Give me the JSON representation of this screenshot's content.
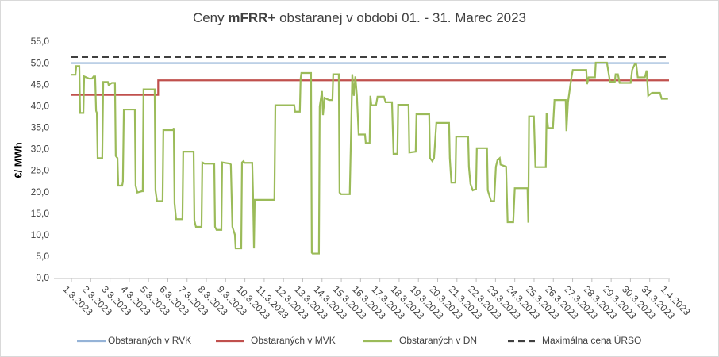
{
  "chart_data": {
    "type": "line",
    "title": [
      "Ceny",
      "mFRR+",
      "obstaranej v období 01. - 31. Marec 2023"
    ],
    "y_label": "€/ MWh",
    "xlim": [
      0,
      31
    ],
    "xticks": [
      {
        "value": 0,
        "label": "1.3.2023"
      },
      {
        "value": 1,
        "label": "2.3.2023"
      },
      {
        "value": 2,
        "label": "3.3.2023"
      },
      {
        "value": 3,
        "label": "4.3.2023"
      },
      {
        "value": 4,
        "label": "5.3.2023"
      },
      {
        "value": 5,
        "label": "6.3.2023"
      },
      {
        "value": 6,
        "label": "7.3.2023"
      },
      {
        "value": 7,
        "label": "8.3.2023"
      },
      {
        "value": 8,
        "label": "9.3.2023"
      },
      {
        "value": 9,
        "label": "10.3.2023"
      },
      {
        "value": 10,
        "label": "11.3.2023"
      },
      {
        "value": 11,
        "label": "12.3.2023"
      },
      {
        "value": 12,
        "label": "13.3.2023"
      },
      {
        "value": 13,
        "label": "14.3.2023"
      },
      {
        "value": 14,
        "label": "15.3.2023"
      },
      {
        "value": 15,
        "label": "16.3.2023"
      },
      {
        "value": 16,
        "label": "17.3.2023"
      },
      {
        "value": 17,
        "label": "18.3.2023"
      },
      {
        "value": 18,
        "label": "19.3.2023"
      },
      {
        "value": 19,
        "label": "20.3.2023"
      },
      {
        "value": 20,
        "label": "21.3.2023"
      },
      {
        "value": 21,
        "label": "22.3.2023"
      },
      {
        "value": 22,
        "label": "23.3.2023"
      },
      {
        "value": 23,
        "label": "24.3.2023"
      },
      {
        "value": 24,
        "label": "25.3.2023"
      },
      {
        "value": 25,
        "label": "26.3.2023"
      },
      {
        "value": 26,
        "label": "27.3.2023"
      },
      {
        "value": 27,
        "label": "28.3.2023"
      },
      {
        "value": 28,
        "label": "29.3.2023"
      },
      {
        "value": 29,
        "label": "30.3.2023"
      },
      {
        "value": 30,
        "label": "31.3.2023"
      },
      {
        "value": 31,
        "label": "1.4.2023"
      }
    ],
    "ylim": [
      0,
      55
    ],
    "yticks": [
      {
        "value": 0,
        "label": "0,0"
      },
      {
        "value": 5,
        "label": "5,0"
      },
      {
        "value": 10,
        "label": "10,0"
      },
      {
        "value": 15,
        "label": "15,0"
      },
      {
        "value": 20,
        "label": "20,0"
      },
      {
        "value": 25,
        "label": "25,0"
      },
      {
        "value": 30,
        "label": "30,0"
      },
      {
        "value": 35,
        "label": "35,0"
      },
      {
        "value": 40,
        "label": "40,0"
      },
      {
        "value": 45,
        "label": "45,0"
      },
      {
        "value": 50,
        "label": "50,0"
      },
      {
        "value": 55,
        "label": "55,0"
      }
    ],
    "grid": false,
    "legend": "bottom",
    "series": [
      {
        "name": "Obstaraných v RVK",
        "color": "#95b3d7",
        "dash": false,
        "x": [
          0,
          31
        ],
        "values": [
          50.1,
          50.1
        ]
      },
      {
        "name": "Obstaraných v MVK",
        "color": "#c0504d",
        "dash": false,
        "x": [
          0,
          4.5,
          4.5,
          31
        ],
        "values": [
          42.7,
          42.7,
          46.1,
          46.1
        ]
      },
      {
        "name": "Obstaraných v DN",
        "color": "#9bbb59",
        "dash": false,
        "x": [
          0.0,
          0.21,
          0.25,
          0.41,
          0.45,
          0.62,
          0.66,
          0.91,
          1.07,
          1.15,
          1.23,
          1.28,
          1.32,
          1.36,
          1.6,
          1.65,
          1.89,
          1.93,
          2.1,
          2.26,
          2.3,
          2.39,
          2.43,
          2.63,
          2.67,
          2.72,
          3.29,
          3.33,
          3.42,
          3.66,
          3.7,
          3.74,
          4.32,
          4.36,
          4.44,
          4.73,
          4.77,
          5.27,
          5.31,
          5.35,
          5.43,
          5.76,
          5.8,
          6.34,
          6.38,
          6.46,
          6.75,
          6.79,
          6.91,
          7.41,
          7.45,
          7.53,
          7.78,
          7.82,
          8.23,
          8.27,
          8.35,
          8.48,
          8.52,
          8.81,
          8.85,
          8.93,
          8.97,
          9.38,
          9.42,
          9.47,
          9.51,
          10.53,
          10.58,
          11.56,
          11.6,
          11.85,
          11.89,
          11.93,
          12.43,
          12.47,
          12.51,
          12.84,
          12.88,
          13.0,
          13.05,
          13.13,
          13.37,
          13.54,
          13.58,
          13.87,
          13.91,
          13.99,
          14.44,
          14.57,
          14.65,
          14.73,
          14.81,
          14.9,
          15.23,
          15.27,
          15.47,
          15.51,
          15.56,
          15.8,
          15.88,
          16.21,
          16.3,
          16.63,
          16.71,
          16.91,
          16.95,
          17.49,
          17.53,
          17.86,
          17.9,
          18.56,
          18.6,
          18.72,
          18.81,
          18.93,
          19.59,
          19.63,
          19.71,
          19.92,
          19.96,
          20.58,
          20.62,
          20.7,
          20.82,
          20.99,
          21.03,
          21.56,
          21.6,
          21.77,
          21.93,
          22.02,
          22.1,
          22.22,
          22.26,
          22.43,
          22.55,
          22.63,
          22.92,
          23.0,
          23.66,
          23.7,
          23.74,
          23.99,
          24.07,
          24.61,
          24.65,
          24.73,
          24.98,
          25.06,
          25.64,
          25.68,
          25.76,
          25.93,
          26.01,
          26.71,
          26.75,
          26.83,
          27.16,
          27.2,
          27.78,
          27.86,
          27.94,
          28.19,
          28.23,
          28.35,
          28.44,
          29.01,
          29.09,
          29.22,
          29.3,
          29.38,
          29.75,
          29.84,
          29.92,
          30.12,
          30.53,
          30.62,
          30.95
        ],
        "values": [
          47.4,
          47.4,
          49.4,
          49.4,
          38.5,
          38.5,
          47,
          46.5,
          46.5,
          47,
          47,
          39,
          38.5,
          28,
          28,
          45.7,
          45.7,
          45,
          45.5,
          45.5,
          28.5,
          28,
          21.6,
          21.6,
          22.5,
          39.3,
          39.3,
          21.6,
          20,
          20.3,
          20.3,
          44,
          44,
          20.5,
          18,
          18,
          34.5,
          34.5,
          35,
          17.5,
          13.8,
          13.8,
          29.5,
          29.5,
          13.5,
          12,
          12,
          27,
          26.7,
          26.7,
          12,
          11.3,
          11.3,
          27,
          26.7,
          26.5,
          12,
          10.2,
          7,
          7,
          27,
          27.3,
          26.9,
          26.9,
          20,
          7,
          18.3,
          18.3,
          40.3,
          40.3,
          38.8,
          38.8,
          46.5,
          47.8,
          47.8,
          6,
          5.8,
          5.8,
          40,
          43.6,
          38,
          42,
          41.5,
          41.5,
          47.5,
          47.5,
          20,
          19.6,
          19.6,
          47.5,
          42.5,
          47,
          42.5,
          33.5,
          33.5,
          31.5,
          31.5,
          42.5,
          40.3,
          40.3,
          42.3,
          42.3,
          41,
          41,
          29,
          29,
          40.4,
          40.4,
          29.3,
          29.5,
          38.2,
          38.2,
          28,
          27.3,
          28,
          36.2,
          36.2,
          28,
          22.3,
          22.3,
          33,
          33,
          26,
          22,
          20.5,
          20.8,
          30.3,
          30.3,
          20.5,
          18,
          18,
          26,
          27.5,
          28,
          26.5,
          26.2,
          26,
          13.1,
          13.1,
          21,
          21,
          13,
          37.7,
          37.7,
          25.9,
          25.9,
          38.5,
          35,
          35,
          41.5,
          41.5,
          34.3,
          41,
          46.5,
          48.5,
          48.5,
          45.2,
          46.8,
          46.8,
          50.2,
          50.2,
          48,
          45.8,
          45.8,
          47.5,
          47.5,
          45.5,
          45.5,
          48.5,
          49.8,
          49.8,
          46.8,
          46.8,
          48.4,
          42.5,
          43.2,
          43.2,
          41.8,
          41.8
        ]
      },
      {
        "name": "Maximálna cena ÚRSO",
        "color": "#404040",
        "dash": true,
        "x": [
          0,
          31
        ],
        "values": [
          51.5,
          51.5
        ]
      }
    ]
  }
}
